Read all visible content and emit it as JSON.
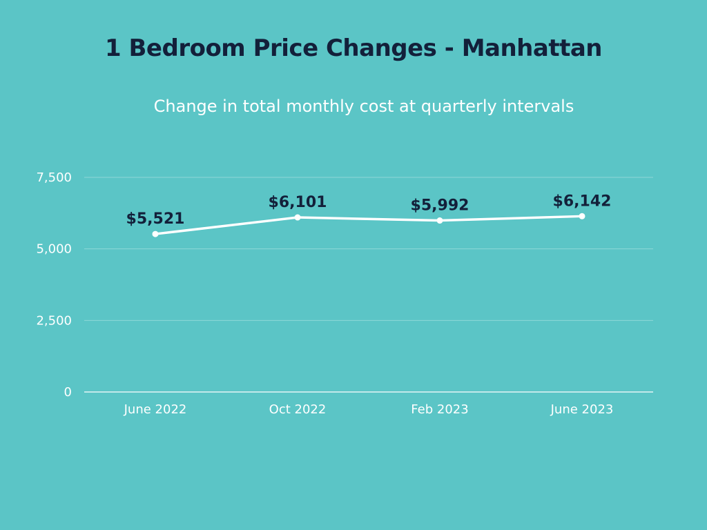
{
  "title": "1 Bedroom Price Changes - Manhattan",
  "subtitle": "Change in total monthly cost at quarterly intervals",
  "colors": {
    "background": "#5bc5c6",
    "line": "#ffffff",
    "gridline": "#8fd8d8",
    "title": "#13203a",
    "data_label": "#13203a",
    "tick_label": "#ffffff"
  },
  "chart_data": {
    "type": "line",
    "title": "1 Bedroom Price Changes - Manhattan",
    "subtitle": "Change in total monthly cost at quarterly intervals",
    "categories": [
      "June 2022",
      "Oct 2022",
      "Feb 2023",
      "June 2023"
    ],
    "series": [
      {
        "values": [
          5521,
          6101,
          5992,
          6142
        ],
        "data_labels": [
          "$5,521",
          "$6,101",
          "$5,992",
          "$6,142"
        ]
      }
    ],
    "xlabel": "",
    "ylabel": "",
    "ylim": [
      0,
      7500
    ],
    "yticks": [
      0,
      2500,
      5000,
      7500
    ],
    "ytick_labels": [
      "0",
      "2,500",
      "5,000",
      "7,500"
    ],
    "grid": true,
    "legend": "none"
  }
}
